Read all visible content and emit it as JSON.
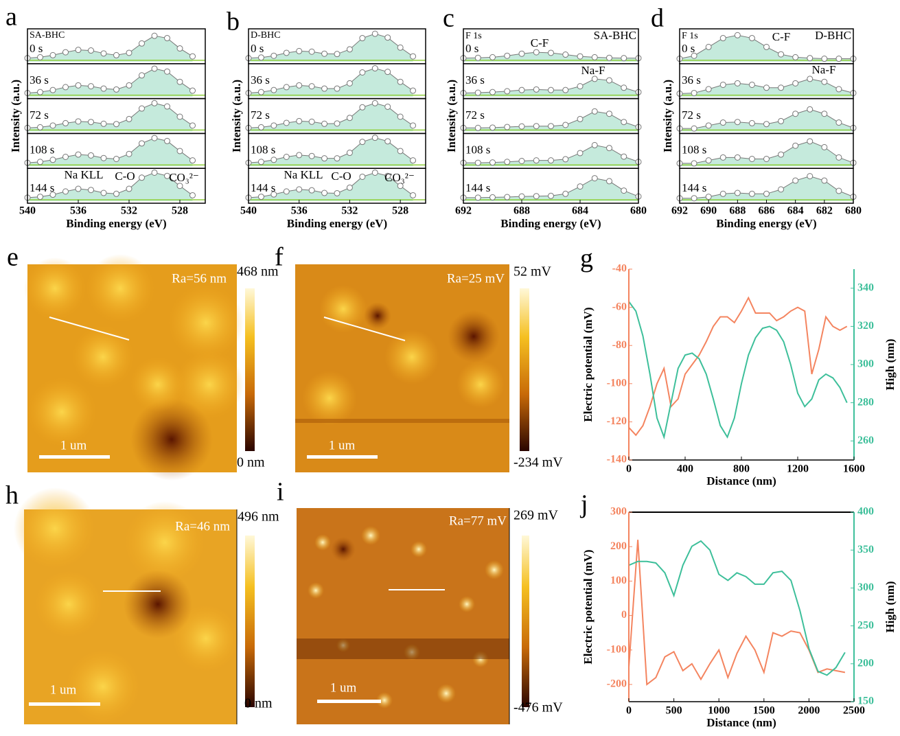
{
  "chart_data": [
    {
      "type": "spectra",
      "label": "a",
      "sample": "SA-BHC",
      "xlabel": "Binding energy (eV)",
      "ylabel": "Intensity (a.u.)",
      "xlim": [
        540,
        526
      ],
      "xticks": [
        540,
        536,
        532,
        528
      ],
      "ylim": [
        0,
        1
      ],
      "x": [
        540,
        539,
        538,
        537,
        536,
        535,
        534,
        533,
        532,
        531,
        530,
        529,
        528,
        527
      ],
      "annotations": [
        "Na KLL",
        "C-O",
        "CO₃²⁻"
      ],
      "series": [
        {
          "name": "0 s",
          "color": "#777777",
          "values": [
            0.12,
            0.15,
            0.22,
            0.32,
            0.4,
            0.38,
            0.28,
            0.22,
            0.3,
            0.62,
            0.88,
            0.8,
            0.45,
            0.18
          ]
        },
        {
          "name": "36 s",
          "color": "#777777",
          "values": [
            0.12,
            0.15,
            0.22,
            0.32,
            0.38,
            0.35,
            0.27,
            0.24,
            0.38,
            0.72,
            0.95,
            0.85,
            0.5,
            0.2
          ]
        },
        {
          "name": "72 s",
          "color": "#777777",
          "values": [
            0.12,
            0.14,
            0.2,
            0.28,
            0.34,
            0.32,
            0.26,
            0.25,
            0.42,
            0.78,
            0.96,
            0.85,
            0.5,
            0.2
          ]
        },
        {
          "name": "108 s",
          "color": "#777777",
          "values": [
            0.12,
            0.15,
            0.22,
            0.32,
            0.4,
            0.37,
            0.28,
            0.25,
            0.42,
            0.78,
            0.96,
            0.86,
            0.52,
            0.2
          ]
        },
        {
          "name": "144 s",
          "color": "#777777",
          "values": [
            0.12,
            0.15,
            0.22,
            0.33,
            0.42,
            0.38,
            0.28,
            0.25,
            0.42,
            0.8,
            0.97,
            0.86,
            0.52,
            0.2
          ]
        }
      ]
    },
    {
      "type": "spectra",
      "label": "b",
      "sample": "D-BHC",
      "xlabel": "Binding energy (eV)",
      "ylabel": "Intensity (a.u.)",
      "xlim": [
        540,
        526
      ],
      "xticks": [
        540,
        536,
        532,
        528
      ],
      "ylim": [
        0,
        1
      ],
      "x": [
        540,
        539,
        538,
        537,
        536,
        535,
        534,
        533,
        532,
        531,
        530,
        529,
        528,
        527
      ],
      "annotations": [
        "Na KLL",
        "C-O",
        "CO₃²⁻"
      ],
      "series": [
        {
          "name": "0 s",
          "color": "#777777",
          "values": [
            0.12,
            0.14,
            0.2,
            0.3,
            0.36,
            0.34,
            0.27,
            0.26,
            0.42,
            0.8,
            0.95,
            0.82,
            0.48,
            0.18
          ]
        },
        {
          "name": "36 s",
          "color": "#777777",
          "values": [
            0.12,
            0.15,
            0.22,
            0.32,
            0.38,
            0.35,
            0.27,
            0.27,
            0.45,
            0.82,
            0.96,
            0.84,
            0.5,
            0.2
          ]
        },
        {
          "name": "72 s",
          "color": "#777777",
          "values": [
            0.12,
            0.14,
            0.2,
            0.29,
            0.35,
            0.33,
            0.26,
            0.27,
            0.46,
            0.82,
            0.96,
            0.84,
            0.5,
            0.2
          ]
        },
        {
          "name": "108 s",
          "color": "#777777",
          "values": [
            0.12,
            0.15,
            0.22,
            0.32,
            0.38,
            0.35,
            0.27,
            0.27,
            0.46,
            0.83,
            0.97,
            0.85,
            0.52,
            0.2
          ]
        },
        {
          "name": "144 s",
          "color": "#777777",
          "values": [
            0.12,
            0.15,
            0.23,
            0.33,
            0.4,
            0.37,
            0.28,
            0.27,
            0.46,
            0.83,
            0.97,
            0.86,
            0.52,
            0.2
          ]
        }
      ]
    },
    {
      "type": "spectra",
      "label": "c",
      "sample": "SA-BHC",
      "element": "F 1s",
      "xlabel": "Binding energy (eV)",
      "ylabel": "Intensity (a.u.)",
      "xlim": [
        692,
        680
      ],
      "xticks": [
        692,
        688,
        684,
        680
      ],
      "ylim": [
        0,
        1
      ],
      "x": [
        692,
        691,
        690,
        689,
        688,
        687,
        686,
        685,
        684,
        683,
        682,
        681,
        680
      ],
      "annotations": [
        "C-F",
        "Na-F"
      ],
      "series": [
        {
          "name": "0 s",
          "color": "#777777",
          "values": [
            0.12,
            0.13,
            0.15,
            0.2,
            0.27,
            0.32,
            0.3,
            0.24,
            0.18,
            0.15,
            0.13,
            0.12,
            0.12
          ]
        },
        {
          "name": "36 s",
          "color": "#777777",
          "values": [
            0.12,
            0.13,
            0.15,
            0.18,
            0.22,
            0.24,
            0.22,
            0.22,
            0.35,
            0.6,
            0.55,
            0.3,
            0.15
          ]
        },
        {
          "name": "72 s",
          "color": "#777777",
          "values": [
            0.12,
            0.12,
            0.13,
            0.15,
            0.17,
            0.18,
            0.18,
            0.22,
            0.42,
            0.68,
            0.6,
            0.32,
            0.15
          ]
        },
        {
          "name": "108 s",
          "color": "#777777",
          "values": [
            0.12,
            0.12,
            0.13,
            0.15,
            0.18,
            0.2,
            0.2,
            0.24,
            0.45,
            0.72,
            0.62,
            0.33,
            0.15
          ]
        },
        {
          "name": "144 s",
          "color": "#777777",
          "values": [
            0.12,
            0.12,
            0.13,
            0.14,
            0.16,
            0.17,
            0.18,
            0.25,
            0.5,
            0.78,
            0.68,
            0.36,
            0.16
          ]
        }
      ]
    },
    {
      "type": "spectra",
      "label": "d",
      "sample": "D-BHC",
      "element": "F 1s",
      "xlabel": "Binding energy (eV)",
      "ylabel": "Intensity (a.u.)",
      "xlim": [
        692,
        680
      ],
      "xticks": [
        692,
        690,
        688,
        686,
        684,
        682,
        680
      ],
      "ylim": [
        0,
        1
      ],
      "x": [
        692,
        691,
        690,
        689,
        688,
        687,
        686,
        685,
        684,
        683,
        682,
        681,
        680
      ],
      "annotations": [
        "C-F",
        "Na-F"
      ],
      "series": [
        {
          "name": "0 s",
          "color": "#777777",
          "values": [
            0.1,
            0.2,
            0.5,
            0.8,
            0.9,
            0.8,
            0.5,
            0.25,
            0.15,
            0.12,
            0.1,
            0.1,
            0.1
          ]
        },
        {
          "name": "36 s",
          "color": "#777777",
          "values": [
            0.1,
            0.12,
            0.25,
            0.4,
            0.45,
            0.4,
            0.3,
            0.3,
            0.45,
            0.6,
            0.5,
            0.25,
            0.12
          ]
        },
        {
          "name": "72 s",
          "color": "#777777",
          "values": [
            0.1,
            0.1,
            0.2,
            0.3,
            0.32,
            0.28,
            0.25,
            0.35,
            0.6,
            0.75,
            0.6,
            0.3,
            0.12
          ]
        },
        {
          "name": "108 s",
          "color": "#777777",
          "values": [
            0.1,
            0.1,
            0.2,
            0.3,
            0.3,
            0.25,
            0.25,
            0.4,
            0.7,
            0.85,
            0.65,
            0.3,
            0.12
          ]
        },
        {
          "name": "144 s",
          "color": "#777777",
          "values": [
            0.1,
            0.1,
            0.15,
            0.25,
            0.28,
            0.25,
            0.25,
            0.4,
            0.7,
            0.85,
            0.7,
            0.35,
            0.15
          ]
        }
      ]
    },
    {
      "type": "line",
      "label": "g",
      "xlabel": "Distance (nm)",
      "ylabel": "Electric potential (mV)",
      "y2label": "High (nm)",
      "xlim": [
        0,
        1600
      ],
      "xticks": [
        0,
        400,
        800,
        1200,
        1600
      ],
      "ylim": [
        -140,
        -40
      ],
      "yticks": [
        -140,
        -120,
        -100,
        -80,
        -60,
        -40
      ],
      "y2lim": [
        250,
        350
      ],
      "y2ticks": [
        260,
        280,
        300,
        320,
        340
      ],
      "x": [
        0,
        50,
        100,
        150,
        200,
        250,
        300,
        350,
        400,
        450,
        500,
        550,
        600,
        650,
        700,
        750,
        800,
        850,
        900,
        950,
        1000,
        1050,
        1100,
        1150,
        1200,
        1250,
        1300,
        1350,
        1400,
        1450,
        1500,
        1550
      ],
      "series": [
        {
          "color": "#f4845f",
          "values": [
            -123,
            -127,
            -122,
            -112,
            -100,
            -92,
            -112,
            -108,
            -95,
            -90,
            -85,
            -78,
            -70,
            -65,
            -65,
            -68,
            -62,
            -55,
            -63,
            -63,
            -63,
            -67,
            -65,
            -62,
            -60,
            -62,
            -95,
            -82,
            -65,
            -70,
            -72,
            -70
          ]
        },
        {
          "color": "#3dbf9a",
          "axis": "y2",
          "values": [
            333,
            328,
            315,
            295,
            272,
            262,
            280,
            298,
            305,
            306,
            303,
            295,
            282,
            268,
            262,
            272,
            290,
            305,
            314,
            319,
            320,
            318,
            312,
            300,
            285,
            278,
            282,
            292,
            295,
            293,
            288,
            280
          ]
        }
      ]
    },
    {
      "type": "line",
      "label": "j",
      "xlabel": "Distance (nm)",
      "ylabel": "Electric potential (mV)",
      "y2label": "High (nm)",
      "xlim": [
        0,
        2500
      ],
      "xticks": [
        0,
        500,
        1000,
        1500,
        2000,
        2500
      ],
      "ylim": [
        -250,
        300
      ],
      "yticks": [
        -200,
        -100,
        0,
        100,
        200,
        300
      ],
      "y2lim": [
        150,
        400
      ],
      "y2ticks": [
        150,
        200,
        250,
        300,
        350,
        400
      ],
      "x": [
        0,
        100,
        200,
        300,
        400,
        500,
        600,
        700,
        800,
        900,
        1000,
        1100,
        1200,
        1300,
        1400,
        1500,
        1600,
        1700,
        1800,
        1900,
        2000,
        2100,
        2200,
        2300,
        2400
      ],
      "series": [
        {
          "color": "#f4845f",
          "values": [
            -150,
            220,
            -200,
            -180,
            -120,
            -105,
            -160,
            -140,
            -185,
            -140,
            -100,
            -180,
            -110,
            -60,
            -100,
            -165,
            -50,
            -60,
            -45,
            -50,
            -100,
            -165,
            -155,
            -160,
            -165
          ]
        },
        {
          "color": "#3dbf9a",
          "axis": "y2",
          "values": [
            330,
            335,
            335,
            333,
            320,
            290,
            330,
            355,
            362,
            350,
            318,
            310,
            320,
            315,
            305,
            305,
            320,
            322,
            310,
            270,
            220,
            190,
            185,
            195,
            215
          ]
        }
      ]
    }
  ],
  "images": [
    {
      "label": "e",
      "ra": "Ra=56 nm",
      "scale": "1 um",
      "cbar_max": "468 nm",
      "cbar_min": "0 nm"
    },
    {
      "label": "f",
      "ra": "Ra=25 mV",
      "scale": "1 um",
      "cbar_max": "52 mV",
      "cbar_min": "-234 mV"
    },
    {
      "label": "h",
      "ra": "Ra=46 nm",
      "scale": "1 um",
      "cbar_max": "496 nm",
      "cbar_min": "0 nm"
    },
    {
      "label": "i",
      "ra": "Ra=77 mV",
      "scale": "1 um",
      "cbar_max": "269 mV",
      "cbar_min": "-476 mV"
    }
  ]
}
